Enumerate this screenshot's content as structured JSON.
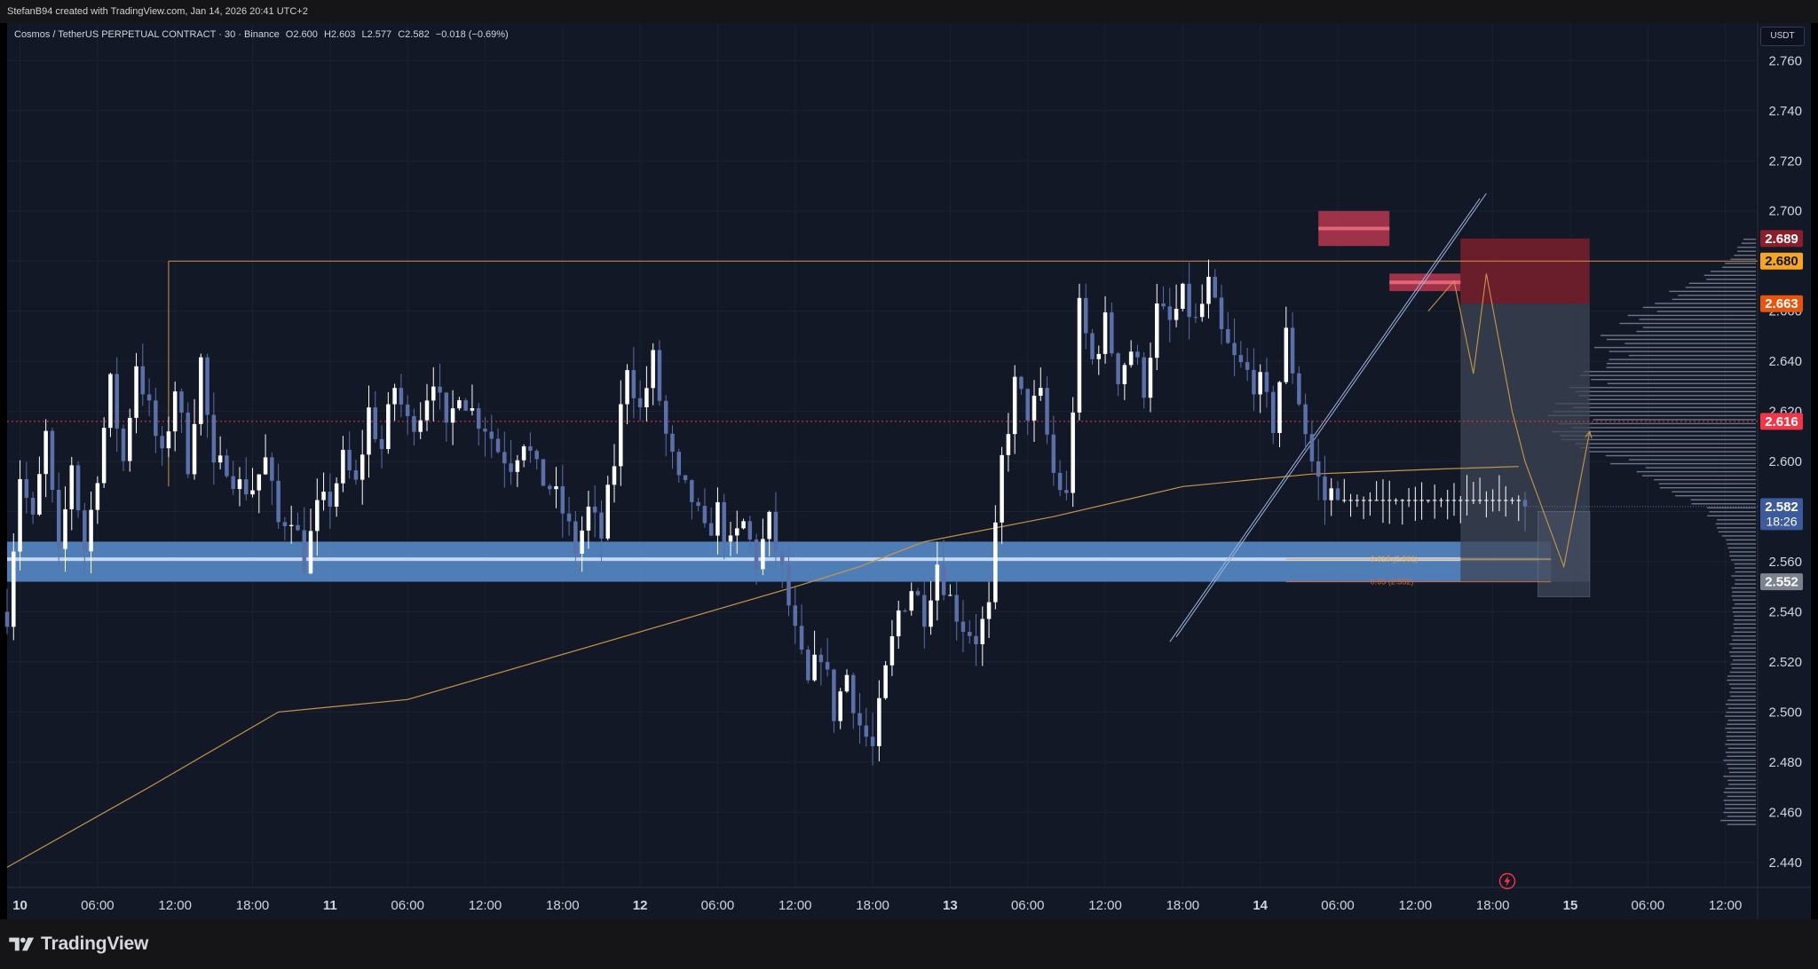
{
  "header": {
    "credit": "StefanB94 created with TradingView.com, Jan 14, 2026 20:41 UTC+2"
  },
  "legend": {
    "symbol": "Cosmos / TetherUS PERPETUAL CONTRACT · 30 · Binance",
    "open": "O2.600",
    "high": "H2.603",
    "low": "L2.577",
    "close": "C2.582",
    "change": "−0.018 (−0.69%)"
  },
  "currency_button": "USDT",
  "brand": {
    "name": "TradingView",
    "icon": "tradingview-logo-icon"
  },
  "icons": {
    "replay": "lightning-icon"
  },
  "colors": {
    "background": "#121826",
    "bull_candle": "#ffffff",
    "bear_candle": "#5b6fa8",
    "moving_average": "#c8964a",
    "resistance_line": "#c8964a",
    "current_price_line": "#f23645",
    "support_zone": "#5a8fd0",
    "supply_zone": "#b22f45"
  },
  "chart_data": {
    "type": "candlestick",
    "symbol": "Cosmos / TetherUS PERPETUAL CONTRACT",
    "interval": "30",
    "exchange": "Binance",
    "currency": "USDT",
    "y_axis": {
      "ticks": [
        2.44,
        2.46,
        2.48,
        2.5,
        2.52,
        2.54,
        2.56,
        2.58,
        2.6,
        2.62,
        2.64,
        2.66,
        2.68,
        2.7,
        2.72,
        2.74,
        2.76
      ],
      "labels": [
        "2.440",
        "2.460",
        "2.480",
        "2.500",
        "2.520",
        "2.540",
        "2.560",
        "2.580",
        "2.600",
        "2.620",
        "2.640",
        "2.660",
        "2.680",
        "2.700",
        "2.720",
        "2.740",
        "2.760"
      ],
      "range": [
        2.43,
        2.775
      ]
    },
    "x_axis": {
      "labels": [
        "10",
        "06:00",
        "12:00",
        "18:00",
        "11",
        "06:00",
        "12:00",
        "18:00",
        "12",
        "06:00",
        "12:00",
        "18:00",
        "13",
        "06:00",
        "12:00",
        "18:00",
        "14",
        "06:00",
        "12:00",
        "18:00",
        "15",
        "06:00",
        "12:00"
      ],
      "label_hours": [
        0,
        6,
        12,
        18,
        24,
        30,
        36,
        42,
        48,
        54,
        60,
        66,
        72,
        78,
        84,
        90,
        96,
        102,
        108,
        114,
        120,
        126,
        132
      ],
      "bold": [
        true,
        false,
        false,
        false,
        true,
        false,
        false,
        false,
        true,
        false,
        false,
        false,
        true,
        false,
        false,
        false,
        true,
        false,
        false,
        false,
        true,
        false,
        false
      ],
      "range_hours": [
        -1.0,
        134.5
      ],
      "last_candle_hour": 116.5
    },
    "price_path": [
      [
        -1,
        2.54
      ],
      [
        0,
        2.595
      ],
      [
        1,
        2.575
      ],
      [
        2,
        2.61
      ],
      [
        3,
        2.56
      ],
      [
        4,
        2.6
      ],
      [
        5,
        2.565
      ],
      [
        5.5,
        2.58
      ],
      [
        7,
        2.63
      ],
      [
        8,
        2.6
      ],
      [
        9,
        2.64
      ],
      [
        10,
        2.62
      ],
      [
        11,
        2.6
      ],
      [
        12,
        2.63
      ],
      [
        13,
        2.6
      ],
      [
        14,
        2.64
      ],
      [
        15,
        2.595
      ],
      [
        16,
        2.6
      ],
      [
        17,
        2.59
      ],
      [
        18,
        2.59
      ],
      [
        19,
        2.6
      ],
      [
        20,
        2.575
      ],
      [
        21,
        2.58
      ],
      [
        22,
        2.56
      ],
      [
        23,
        2.58
      ],
      [
        24,
        2.585
      ],
      [
        25,
        2.6
      ],
      [
        26,
        2.59
      ],
      [
        27,
        2.62
      ],
      [
        28,
        2.605
      ],
      [
        29,
        2.63
      ],
      [
        30,
        2.615
      ],
      [
        31,
        2.62
      ],
      [
        32,
        2.635
      ],
      [
        33,
        2.61
      ],
      [
        34,
        2.63
      ],
      [
        35,
        2.62
      ],
      [
        36,
        2.615
      ],
      [
        37,
        2.605
      ],
      [
        38,
        2.6
      ],
      [
        39,
        2.61
      ],
      [
        40,
        2.595
      ],
      [
        41,
        2.59
      ],
      [
        42,
        2.58
      ],
      [
        43,
        2.565
      ],
      [
        44,
        2.58
      ],
      [
        45,
        2.57
      ],
      [
        46,
        2.6
      ],
      [
        47,
        2.64
      ],
      [
        48,
        2.62
      ],
      [
        49,
        2.64
      ],
      [
        50,
        2.61
      ],
      [
        51,
        2.59
      ],
      [
        52,
        2.585
      ],
      [
        53,
        2.57
      ],
      [
        54,
        2.58
      ],
      [
        55,
        2.565
      ],
      [
        56,
        2.575
      ],
      [
        57,
        2.56
      ],
      [
        58,
        2.575
      ],
      [
        59,
        2.555
      ],
      [
        60,
        2.53
      ],
      [
        61,
        2.51
      ],
      [
        62,
        2.525
      ],
      [
        63,
        2.5
      ],
      [
        64,
        2.515
      ],
      [
        65,
        2.495
      ],
      [
        66,
        2.485
      ],
      [
        67,
        2.515
      ],
      [
        68,
        2.54
      ],
      [
        69,
        2.55
      ],
      [
        70,
        2.54
      ],
      [
        71,
        2.56
      ],
      [
        72,
        2.545
      ],
      [
        73,
        2.535
      ],
      [
        74,
        2.53
      ],
      [
        75,
        2.54
      ],
      [
        76,
        2.6
      ],
      [
        77,
        2.63
      ],
      [
        78,
        2.62
      ],
      [
        79,
        2.625
      ],
      [
        80,
        2.595
      ],
      [
        81,
        2.585
      ],
      [
        82,
        2.66
      ],
      [
        83,
        2.64
      ],
      [
        84,
        2.655
      ],
      [
        85,
        2.635
      ],
      [
        86,
        2.645
      ],
      [
        87,
        2.63
      ],
      [
        88,
        2.66
      ],
      [
        89,
        2.655
      ],
      [
        90,
        2.665
      ],
      [
        91,
        2.655
      ],
      [
        92,
        2.67
      ],
      [
        93,
        2.65
      ],
      [
        94,
        2.64
      ],
      [
        95,
        2.635
      ],
      [
        96,
        2.63
      ],
      [
        97,
        2.615
      ],
      [
        98,
        2.65
      ],
      [
        99,
        2.625
      ],
      [
        100,
        2.6
      ],
      [
        101,
        2.585
      ],
      [
        102,
        2.59
      ]
    ],
    "last_close": 2.582,
    "moving_average": [
      [
        -1,
        2.438
      ],
      [
        10,
        2.47
      ],
      [
        20,
        2.5
      ],
      [
        30,
        2.505
      ],
      [
        40,
        2.52
      ],
      [
        50,
        2.535
      ],
      [
        60,
        2.55
      ],
      [
        65,
        2.558
      ],
      [
        70,
        2.568
      ],
      [
        80,
        2.578
      ],
      [
        90,
        2.59
      ],
      [
        100,
        2.595
      ],
      [
        110,
        2.597
      ],
      [
        116,
        2.598
      ]
    ],
    "levels": {
      "resistance": {
        "y": 2.68,
        "from": 11.5,
        "to": 134.5
      },
      "current_price": {
        "y": 2.616
      },
      "support_zone": {
        "y_low": 2.552,
        "y_high": 2.568,
        "from": -1.0,
        "to": 118.5
      },
      "fibonacci": [
        {
          "label": "0.618 (2.561)",
          "y": 2.561,
          "from": 98.0,
          "to": 118.5,
          "color": "#e0a04a"
        },
        {
          "label": "0.65 (2.552)",
          "y": 2.552,
          "from": 98.0,
          "to": 118.5,
          "color": "#d06a34"
        }
      ],
      "supply_zones": [
        {
          "y_low": 2.686,
          "y_high": 2.7,
          "from": 100.5,
          "to": 106.0
        },
        {
          "y_low": 2.668,
          "y_high": 2.675,
          "from": 106.0,
          "to": 111.5
        }
      ],
      "position_tool": {
        "from": 111.5,
        "to": 121.5,
        "stop_y": 2.689,
        "entry_y": 2.663,
        "target_y": 2.552
      },
      "target_box": {
        "y_low": 2.546,
        "y_high": 2.58,
        "from": 117.5,
        "to": 121.5
      }
    },
    "trend_channel": {
      "lines": [
        [
          [
            89.0,
            2.528
          ],
          [
            113.0,
            2.705
          ]
        ],
        [
          [
            89.5,
            2.53
          ],
          [
            113.5,
            2.707
          ]
        ]
      ]
    },
    "projection": [
      [
        109.0,
        2.66
      ],
      [
        111.0,
        2.672
      ],
      [
        112.5,
        2.635
      ],
      [
        113.5,
        2.675
      ],
      [
        115.5,
        2.62
      ],
      [
        116.5,
        2.6
      ],
      [
        119.5,
        2.558
      ],
      [
        121.5,
        2.612
      ]
    ],
    "volume_profile": {
      "price_range": [
        2.455,
        2.69
      ],
      "peak_price": 2.616
    },
    "price_badges": [
      {
        "label": "2.689",
        "y": 2.689,
        "bg": "#8b1e2a",
        "fg": "#ffffff"
      },
      {
        "label": "2.680",
        "y": 2.68,
        "bg": "#f6a623",
        "fg": "#131722"
      },
      {
        "label": "2.663",
        "y": 2.663,
        "bg": "#e8540b",
        "fg": "#ffffff"
      },
      {
        "label": "2.616",
        "y": 2.616,
        "bg": "#f23645",
        "fg": "#ffffff"
      },
      {
        "label": "2.582",
        "y": 2.582,
        "bg": "#3d5a9c",
        "fg": "#ffffff",
        "sub": "18:26"
      },
      {
        "label": "2.552",
        "y": 2.552,
        "bg": "#7d8290",
        "fg": "#ffffff"
      }
    ]
  }
}
